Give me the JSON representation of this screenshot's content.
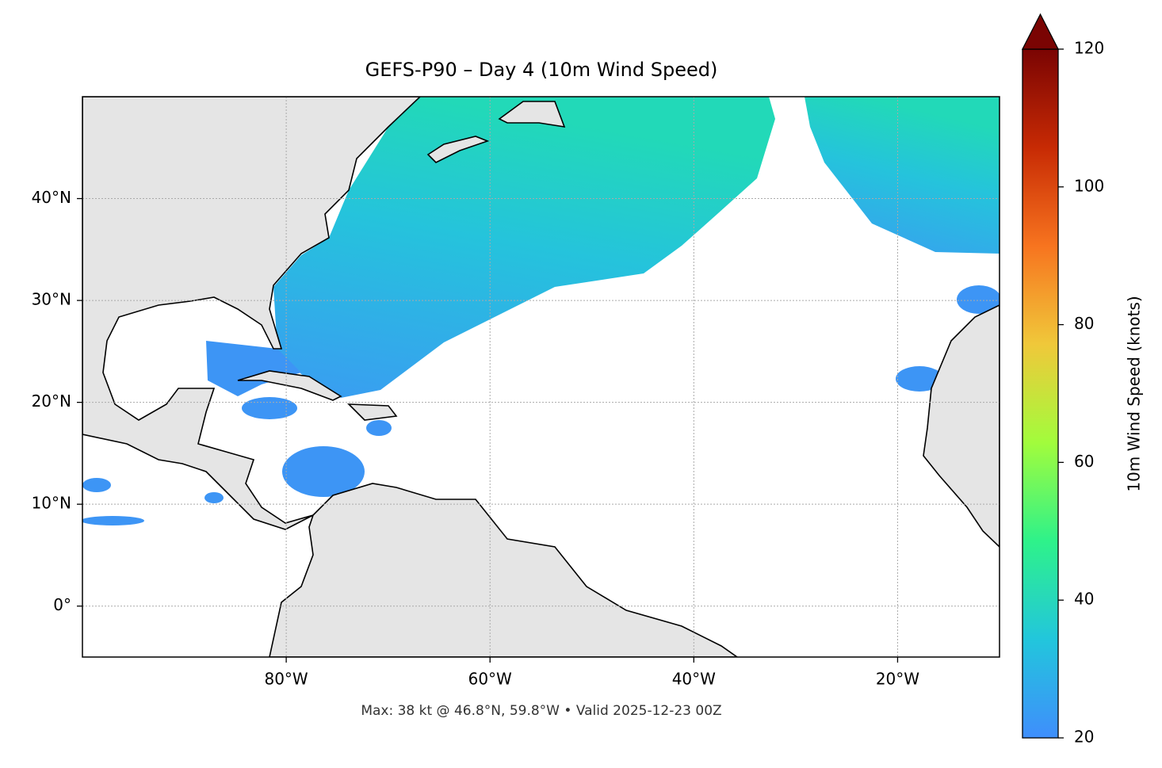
{
  "chart_data": {
    "type": "map",
    "title": "GEFS-P90 – Day 4 (10m Wind Speed)",
    "footer": "Max: 38 kt @ 46.8°N, 59.8°W • Valid 2025-12-23 00Z",
    "xlim": [
      -100,
      -10
    ],
    "ylim": [
      -5,
      50
    ],
    "xticks": [
      {
        "value": -80,
        "label": "80°W"
      },
      {
        "value": -60,
        "label": "60°W"
      },
      {
        "value": -40,
        "label": "40°W"
      },
      {
        "value": -20,
        "label": "20°W"
      }
    ],
    "yticks": [
      {
        "value": 0,
        "label": "0°"
      },
      {
        "value": 10,
        "label": "10°N"
      },
      {
        "value": 20,
        "label": "20°N"
      },
      {
        "value": 30,
        "label": "30°N"
      },
      {
        "value": 40,
        "label": "40°N"
      }
    ],
    "grid": true,
    "colorbar": {
      "label": "10m Wind Speed (knots)",
      "lim": [
        20,
        120
      ],
      "ticks": [
        20,
        40,
        60,
        80,
        100,
        120
      ],
      "colors": [
        "#3f8efc",
        "#22c6dc",
        "#2ef28a",
        "#a2fc3c",
        "#f0c83a",
        "#f7741f",
        "#c72a04",
        "#7a0403"
      ]
    }
  }
}
